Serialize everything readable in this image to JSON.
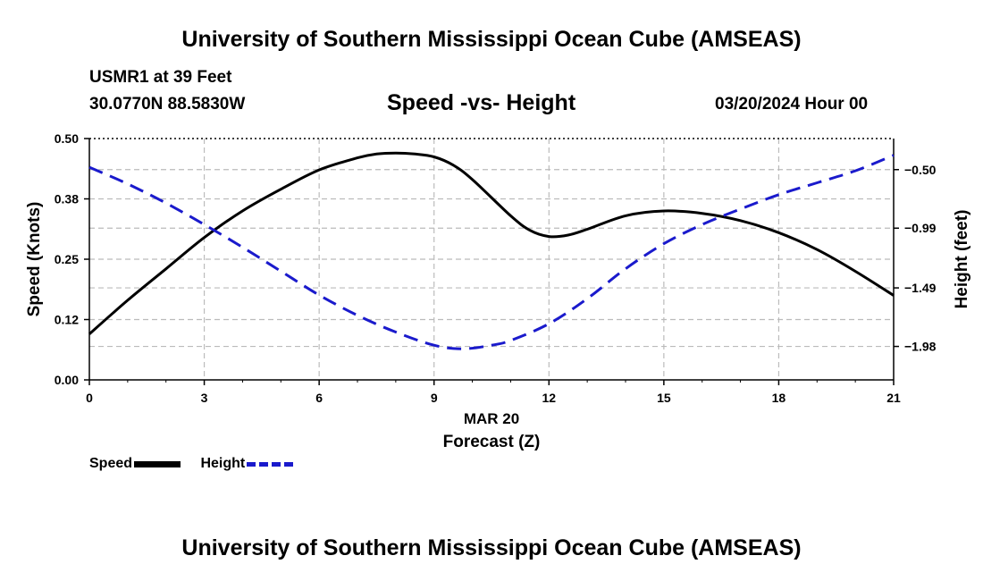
{
  "header": {
    "top_title": "University of Southern Mississippi Ocean Cube (AMSEAS)",
    "station": "USMR1 at 39 Feet",
    "coords": "30.0770N  88.5830W",
    "run_date": "03/20/2024 Hour 00",
    "bottom_title": "University of Southern Mississippi Ocean Cube (AMSEAS)"
  },
  "legend": {
    "speed_label": "Speed",
    "height_label": "Height"
  },
  "chart_data": {
    "type": "line",
    "title": "Speed -vs- Height",
    "xlabel": "Forecast (Z)",
    "xlabel_date": "MAR 20",
    "ylabel": "Speed (Knots)",
    "y2label": "Height (feet)",
    "xlim": [
      0,
      21
    ],
    "ylim": [
      0,
      0.5
    ],
    "y2lim": [
      -2.26,
      -0.24
    ],
    "x_ticks": [
      0,
      3,
      6,
      9,
      12,
      15,
      18,
      21
    ],
    "y_ticks": [
      0.0,
      0.125,
      0.25,
      0.375,
      0.5
    ],
    "y_tick_labels": [
      "0.00",
      "0.12",
      "0.25",
      "0.38",
      "0.50"
    ],
    "y2_ticks": [
      -0.5,
      -0.99,
      -1.49,
      -1.98
    ],
    "y2_tick_labels": [
      "-0.50",
      "-0.99",
      "-1.49",
      "-1.98"
    ],
    "grid": true,
    "colors": {
      "speed": "#000000",
      "height": "#1a1acc",
      "grid": "#bbbbbb"
    },
    "series": [
      {
        "name": "Speed",
        "axis": "left",
        "x": [
          0,
          1,
          2,
          3,
          4,
          5,
          6,
          7,
          7.5,
          8,
          8.5,
          9,
          9.5,
          10,
          11,
          11.5,
          12,
          12.5,
          13,
          14,
          15,
          16,
          17,
          18,
          19,
          20,
          21
        ],
        "values": [
          0.095,
          0.165,
          0.23,
          0.295,
          0.35,
          0.395,
          0.435,
          0.46,
          0.468,
          0.47,
          0.468,
          0.462,
          0.445,
          0.415,
          0.34,
          0.31,
          0.297,
          0.3,
          0.312,
          0.34,
          0.35,
          0.345,
          0.33,
          0.305,
          0.27,
          0.225,
          0.175
        ]
      },
      {
        "name": "Height",
        "axis": "right",
        "x": [
          0,
          1,
          2,
          3,
          4,
          5,
          6,
          7,
          8,
          9,
          9.75,
          10.5,
          11,
          12,
          13,
          14,
          15,
          16,
          17,
          18,
          19,
          20,
          21
        ],
        "values": [
          -0.48,
          -0.62,
          -0.78,
          -0.96,
          -1.15,
          -1.35,
          -1.55,
          -1.72,
          -1.86,
          -1.97,
          -2.0,
          -1.97,
          -1.93,
          -1.79,
          -1.58,
          -1.33,
          -1.12,
          -0.96,
          -0.83,
          -0.71,
          -0.61,
          -0.51,
          -0.38
        ]
      }
    ]
  }
}
